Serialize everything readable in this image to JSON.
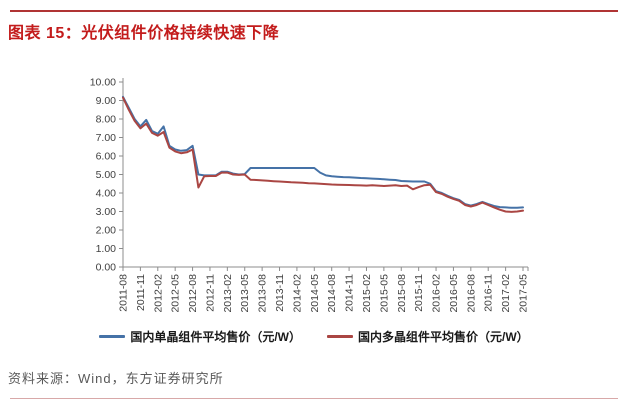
{
  "header": {
    "title": "图表 15：光伏组件价格持续快速下降"
  },
  "footer": {
    "source_label": "资料来源：Wind，东方证券研究所"
  },
  "colors": {
    "title_red": "#c31c1c",
    "top_rule": "#b03434",
    "bottom_rule": "#d8a8a8",
    "axis_gray": "#8c8c8c",
    "tick_label": "#404040"
  },
  "chart_data": {
    "type": "line",
    "title": "",
    "xlabel": "",
    "ylabel": "",
    "grid": false,
    "legend_position": "bottom",
    "ylim": [
      0,
      10
    ],
    "y_tick_labels": [
      "0.00",
      "1.00",
      "2.00",
      "3.00",
      "4.00",
      "5.00",
      "6.00",
      "7.00",
      "8.00",
      "9.00",
      "10.00"
    ],
    "x_tick_labels": [
      "2011-08",
      "2011-11",
      "2012-02",
      "2012-05",
      "2012-08",
      "2012-11",
      "2013-02",
      "2013-05",
      "2013-08",
      "2013-11",
      "2014-02",
      "2014-05",
      "2014-08",
      "2014-11",
      "2015-02",
      "2015-05",
      "2015-08",
      "2015-11",
      "2016-02",
      "2016-05",
      "2016-08",
      "2016-11",
      "2017-02",
      "2017-05"
    ],
    "points_per_tick": 3,
    "x_start": "2011-08",
    "x_end": "2017-05",
    "x_unit": "month",
    "series": [
      {
        "name": "国内单晶组件平均售价（元/W）",
        "color": "#4572A7",
        "values": [
          9.2,
          8.6,
          8.0,
          7.6,
          7.95,
          7.35,
          7.2,
          7.6,
          6.55,
          6.35,
          6.28,
          6.32,
          6.55,
          5.0,
          4.95,
          4.95,
          4.95,
          5.15,
          5.15,
          5.05,
          5.0,
          5.02,
          5.35,
          5.35,
          5.35,
          5.35,
          5.35,
          5.35,
          5.35,
          5.35,
          5.35,
          5.35,
          5.35,
          5.35,
          5.1,
          4.95,
          4.9,
          4.88,
          4.86,
          4.85,
          4.83,
          4.81,
          4.8,
          4.78,
          4.76,
          4.74,
          4.72,
          4.7,
          4.65,
          4.63,
          4.62,
          4.62,
          4.62,
          4.5,
          4.1,
          4.0,
          3.85,
          3.72,
          3.62,
          3.4,
          3.32,
          3.4,
          3.52,
          3.4,
          3.3,
          3.24,
          3.22,
          3.2,
          3.2,
          3.22
        ]
      },
      {
        "name": "国内多晶组件平均售价（元/W）",
        "color": "#AA4643",
        "values": [
          9.15,
          8.5,
          7.9,
          7.5,
          7.75,
          7.25,
          7.1,
          7.3,
          6.45,
          6.25,
          6.15,
          6.2,
          6.35,
          4.3,
          4.9,
          4.92,
          4.92,
          5.1,
          5.1,
          5.0,
          4.98,
          5.0,
          4.72,
          4.7,
          4.68,
          4.66,
          4.64,
          4.62,
          4.6,
          4.58,
          4.57,
          4.55,
          4.53,
          4.52,
          4.5,
          4.48,
          4.46,
          4.45,
          4.44,
          4.43,
          4.42,
          4.41,
          4.4,
          4.42,
          4.4,
          4.38,
          4.4,
          4.42,
          4.38,
          4.4,
          4.2,
          4.32,
          4.42,
          4.45,
          4.05,
          3.95,
          3.8,
          3.68,
          3.58,
          3.35,
          3.27,
          3.35,
          3.48,
          3.35,
          3.22,
          3.1,
          3.0,
          2.98,
          3.0,
          3.05
        ]
      }
    ]
  }
}
